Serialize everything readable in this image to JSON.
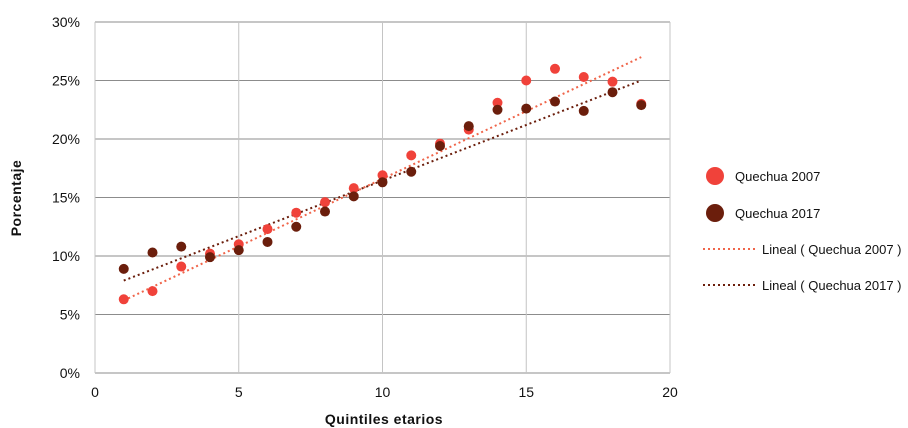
{
  "chart_data": {
    "type": "scatter",
    "xlabel": "Quintiles etarios",
    "ylabel": "Porcentaje",
    "xlim": [
      0,
      20
    ],
    "ylim": [
      0,
      30
    ],
    "x_ticks": [
      "0",
      "5",
      "10",
      "15",
      "20"
    ],
    "y_ticks": [
      "0%",
      "5%",
      "10%",
      "15%",
      "20%",
      "25%",
      "30%"
    ],
    "grid": true,
    "legend_position": "right",
    "series": [
      {
        "name": "Quechua 2007",
        "color": "#f0423a",
        "x": [
          1,
          2,
          3,
          4,
          5,
          6,
          7,
          8,
          9,
          10,
          11,
          12,
          13,
          14,
          15,
          16,
          17,
          18,
          19
        ],
        "y": [
          6.3,
          7.0,
          9.1,
          10.2,
          11.0,
          12.3,
          13.7,
          14.6,
          15.8,
          16.9,
          18.6,
          19.6,
          20.8,
          23.1,
          25.0,
          26.0,
          25.3,
          24.9,
          23.0
        ]
      },
      {
        "name": "Quechua 2017",
        "color": "#6b1e0c",
        "x": [
          1,
          2,
          3,
          4,
          5,
          6,
          7,
          8,
          9,
          10,
          11,
          12,
          13,
          14,
          15,
          16,
          17,
          18,
          19
        ],
        "y": [
          8.9,
          10.3,
          10.8,
          9.9,
          10.5,
          11.2,
          12.5,
          13.8,
          15.1,
          16.3,
          17.2,
          19.4,
          21.1,
          22.5,
          22.6,
          23.2,
          22.4,
          24.0,
          22.9
        ]
      }
    ],
    "trendlines": [
      {
        "name": "Lineal ( Quechua 2007 )",
        "color": "#f0654a",
        "x": [
          1,
          19
        ],
        "y": [
          6.2,
          27.0
        ]
      },
      {
        "name": "Lineal ( Quechua 2017 )",
        "color": "#6b1e0c",
        "x": [
          1,
          19
        ],
        "y": [
          7.9,
          25.0
        ]
      }
    ]
  }
}
